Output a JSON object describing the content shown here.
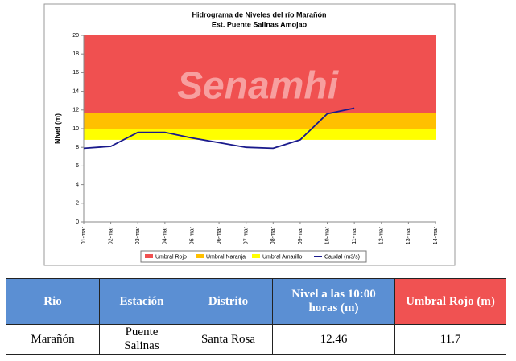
{
  "chart_data": {
    "type": "line",
    "title": "Hidrograma de Niveles del río Marañón",
    "subtitle": "Est. Puente Salinas Amojao",
    "watermark": "Senamhi",
    "y_label": "Nivel (m)",
    "categories": [
      "01-mar",
      "02-mar",
      "03-mar",
      "04-mar",
      "05-mar",
      "06-mar",
      "07-mar",
      "08-mar",
      "09-mar",
      "10-mar",
      "11-mar",
      "12-mar",
      "13-mar",
      "14-mar"
    ],
    "bands": [
      {
        "name": "Umbral Rojo",
        "color": "#f05050",
        "from": 11.7,
        "to": 20
      },
      {
        "name": "Umbral Naranja",
        "color": "#ffc000",
        "from": 10,
        "to": 11.7
      },
      {
        "name": "Umbral Amarillo",
        "color": "#ffff00",
        "from": 8.8,
        "to": 10
      }
    ],
    "series": [
      {
        "name": "Caudal (m3/s)",
        "color": "#1a1a8c",
        "values": [
          7.9,
          8.1,
          9.6,
          9.6,
          9.0,
          8.5,
          8.0,
          7.9,
          8.8,
          11.6,
          12.2,
          null,
          null,
          null
        ]
      }
    ],
    "ylim": [
      0,
      20
    ],
    "yticks": [
      0,
      2,
      4,
      6,
      8,
      10,
      12,
      14,
      16,
      18,
      20
    ]
  },
  "table": {
    "header": [
      "Rio",
      "Estación",
      "Distrito",
      "Nivel a las 10:00 horas (m)",
      "Umbral Rojo (m)"
    ],
    "rows": [
      [
        "Marañón",
        "Puente Salinas",
        "Santa Rosa",
        "12.46",
        "11.7"
      ]
    ]
  }
}
